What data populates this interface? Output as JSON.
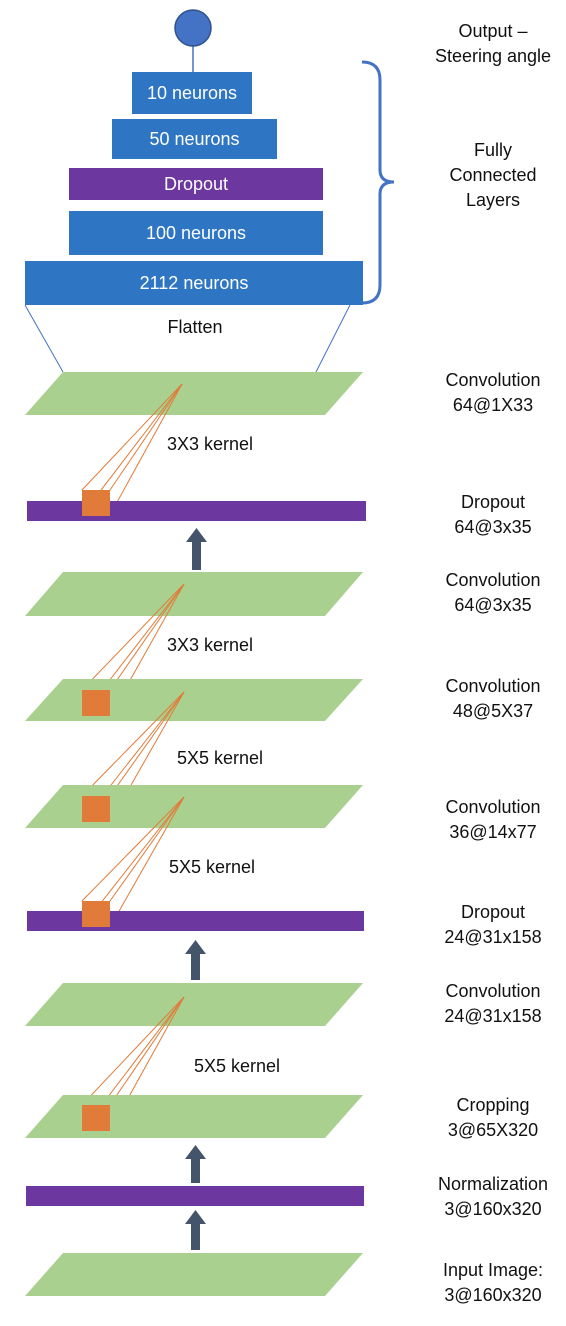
{
  "output": {
    "line1": "Output –",
    "line2": "Steering angle"
  },
  "dense": {
    "fc10": "10 neurons",
    "fc50": "50 neurons",
    "dropout": "Dropout",
    "fc100": "100 neurons",
    "fc2112": "2112 neurons",
    "flatten": "Flatten",
    "group_label": [
      "Fully",
      "Connected",
      "Layers"
    ]
  },
  "kernels": [
    "3X3 kernel",
    "3X3 kernel",
    "5X5 kernel",
    "5X5 kernel",
    "5X5 kernel"
  ],
  "layers": [
    {
      "name": "Convolution",
      "shape": "64@1X33"
    },
    {
      "name": "Dropout",
      "shape": "64@3x35"
    },
    {
      "name": "Convolution",
      "shape": "64@3x35"
    },
    {
      "name": "Convolution",
      "shape": "48@5X37"
    },
    {
      "name": "Convolution",
      "shape": "36@14x77"
    },
    {
      "name": "Dropout",
      "shape": "24@31x158"
    },
    {
      "name": "Convolution",
      "shape": "24@31x158"
    },
    {
      "name": "Cropping",
      "shape": "3@65X320"
    },
    {
      "name": "Normalization",
      "shape": "3@160x320"
    },
    {
      "name": "Input Image:",
      "shape": "3@160x320"
    }
  ],
  "colors": {
    "fc": "#2e75c4",
    "dropout": "#6d37a0",
    "conv": "#a9d08e",
    "kernel": "#e07b39",
    "arrow": "#44546a",
    "bracket": "#4472c4"
  }
}
